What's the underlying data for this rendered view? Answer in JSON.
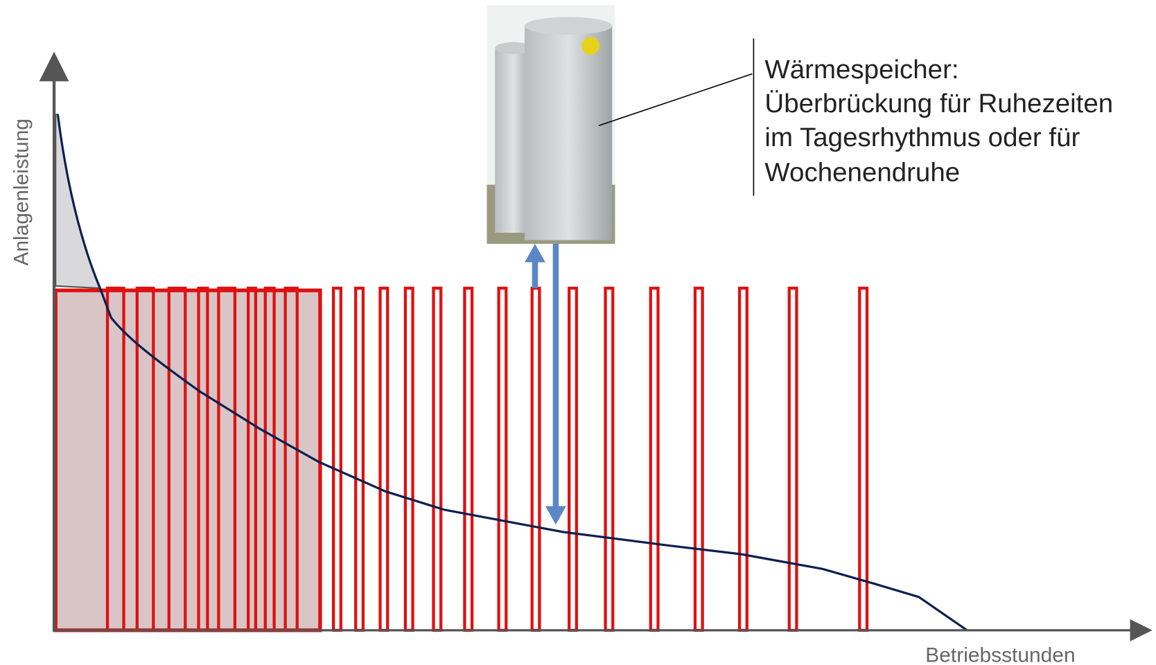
{
  "y_axis_label": "Anlagenleistung",
  "x_axis_label": "Betriebsstunden",
  "callout": {
    "lines": [
      "Wärmespeicher:",
      "Überbrückung für Ruhezeiten",
      "im Tagesrhythmus oder für",
      "Wochenendruhe"
    ]
  }
}
